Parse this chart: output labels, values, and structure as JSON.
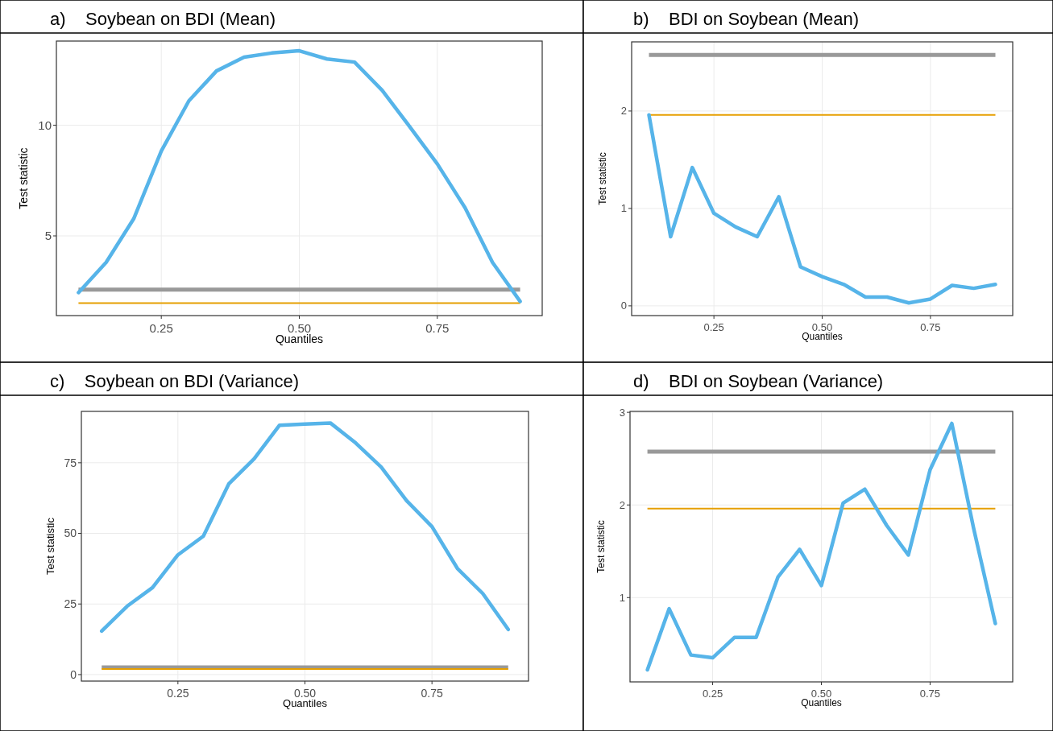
{
  "chart_data": [
    {
      "type": "line",
      "title": "a)    Soybean on BDI (Mean)",
      "xlabel": "Quantiles",
      "ylabel": "Test statistic",
      "x": [
        0.1,
        0.15,
        0.2,
        0.25,
        0.3,
        0.35,
        0.4,
        0.45,
        0.5,
        0.55,
        0.6,
        0.65,
        0.7,
        0.75,
        0.8,
        0.85,
        0.9
      ],
      "series": [
        {
          "color": "#56b4e9",
          "values": [
            2.44,
            3.8,
            5.77,
            8.83,
            11.1,
            12.45,
            13.07,
            13.26,
            13.36,
            12.99,
            12.85,
            11.58,
            9.93,
            8.25,
            6.28,
            3.8,
            2.04
          ]
        }
      ],
      "xlim": [
        0.06,
        0.94
      ],
      "ylim": [
        1.4,
        13.8
      ],
      "xticks": [
        {
          "value": 0.25,
          "label": "0.25"
        },
        {
          "value": 0.5,
          "label": "0.50"
        },
        {
          "value": 0.75,
          "label": "0.75"
        }
      ],
      "yticks": [
        5,
        10
      ],
      "grid": true,
      "ref_lines": [
        {
          "axis": "y",
          "value": 2.576,
          "color": "#999999"
        },
        {
          "axis": "y",
          "value": 1.96,
          "color": "#e69f00"
        }
      ]
    },
    {
      "type": "line",
      "title": "b)    BDI on Soybean (Mean)",
      "xlabel": "Quantiles",
      "ylabel": "Test statistic",
      "x": [
        0.1,
        0.15,
        0.2,
        0.25,
        0.3,
        0.35,
        0.4,
        0.45,
        0.5,
        0.55,
        0.6,
        0.65,
        0.7,
        0.75,
        0.8,
        0.85,
        0.9
      ],
      "series": [
        {
          "color": "#56b4e9",
          "values": [
            1.96,
            0.71,
            1.42,
            0.95,
            0.81,
            0.71,
            1.12,
            0.4,
            0.3,
            0.22,
            0.09,
            0.09,
            0.03,
            0.07,
            0.21,
            0.18,
            0.22
          ]
        }
      ],
      "xlim": [
        0.06,
        0.94
      ],
      "ylim": [
        -0.1,
        2.71
      ],
      "xticks": [
        {
          "value": 0.25,
          "label": "0.25"
        },
        {
          "value": 0.5,
          "label": "0.50"
        },
        {
          "value": 0.75,
          "label": "0.75"
        }
      ],
      "yticks": [
        0,
        1,
        2
      ],
      "grid": true,
      "ref_lines": [
        {
          "axis": "y",
          "value": 2.576,
          "color": "#999999"
        },
        {
          "axis": "y",
          "value": 1.96,
          "color": "#e69f00"
        }
      ]
    },
    {
      "type": "line",
      "title": "c)    Soybean on BDI (Variance)",
      "xlabel": "Quantiles",
      "ylabel": "Test statistic",
      "x": [
        0.1,
        0.15,
        0.2,
        0.25,
        0.3,
        0.35,
        0.4,
        0.45,
        0.5,
        0.55,
        0.6,
        0.65,
        0.7,
        0.75,
        0.8,
        0.85,
        0.9
      ],
      "series": [
        {
          "color": "#56b4e9",
          "values": [
            15.4,
            24.2,
            30.8,
            42.4,
            49,
            67.5,
            76.4,
            88.3,
            88.7,
            89.1,
            82,
            73.5,
            61.6,
            52.4,
            37.6,
            28.7,
            16
          ]
        }
      ],
      "xlim": [
        0.06,
        0.94
      ],
      "ylim": [
        -2.3,
        93.2
      ],
      "xticks": [
        {
          "value": 0.25,
          "label": "0.25"
        },
        {
          "value": 0.5,
          "label": "0.50"
        },
        {
          "value": 0.75,
          "label": "0.75"
        }
      ],
      "yticks": [
        0,
        25,
        50,
        75
      ],
      "grid": true,
      "ref_lines": [
        {
          "axis": "y",
          "value": 2.576,
          "color": "#999999"
        },
        {
          "axis": "y",
          "value": 1.96,
          "color": "#e69f00"
        }
      ]
    },
    {
      "type": "line",
      "title": "d)    BDI on Soybean (Variance)",
      "xlabel": "Quantiles",
      "ylabel": "Test statistic",
      "x": [
        0.1,
        0.15,
        0.2,
        0.25,
        0.3,
        0.35,
        0.4,
        0.45,
        0.5,
        0.55,
        0.6,
        0.65,
        0.7,
        0.75,
        0.8,
        0.85,
        0.9
      ],
      "series": [
        {
          "color": "#56b4e9",
          "values": [
            0.22,
            0.88,
            0.38,
            0.35,
            0.57,
            0.57,
            1.22,
            1.52,
            1.13,
            2.02,
            2.17,
            1.78,
            1.46,
            2.38,
            2.88,
            1.75,
            0.72
          ]
        }
      ],
      "xlim": [
        0.06,
        0.94
      ],
      "ylim": [
        0.09,
        3.01
      ],
      "xticks": [
        {
          "value": 0.25,
          "label": "0.25"
        },
        {
          "value": 0.5,
          "label": "0.50"
        },
        {
          "value": 0.75,
          "label": "0.75"
        }
      ],
      "yticks": [
        1,
        2,
        3
      ],
      "grid": true,
      "ref_lines": [
        {
          "axis": "y",
          "value": 2.576,
          "color": "#999999"
        },
        {
          "axis": "y",
          "value": 1.96,
          "color": "#e69f00"
        }
      ]
    }
  ]
}
